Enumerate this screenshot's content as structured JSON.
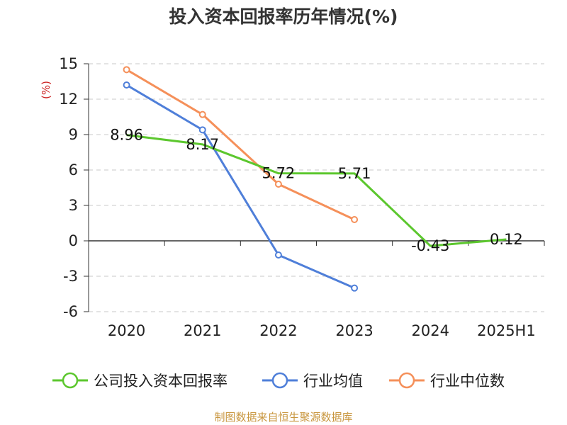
{
  "chart_data": {
    "type": "line",
    "title": "投入资本回报率历年情况(%)",
    "ylabel": "(%)",
    "categories": [
      "2020",
      "2021",
      "2022",
      "2023",
      "2024",
      "2025H1"
    ],
    "y_ticks": [
      15,
      12,
      9,
      6,
      3,
      0,
      -3,
      -6
    ],
    "ylim": [
      -6,
      15
    ],
    "grid": true,
    "legend_position": "bottom",
    "series": [
      {
        "name": "公司投入资本回报率",
        "color": "#5cc72e",
        "values": [
          8.96,
          8.17,
          5.72,
          5.71,
          -0.43,
          0.12
        ],
        "labels": [
          "8.96",
          "8.17",
          "5.72",
          "5.71",
          "-0.43",
          "0.12"
        ],
        "markers": false
      },
      {
        "name": "行业均值",
        "color": "#4f7fd9",
        "values": [
          13.2,
          9.4,
          -1.2,
          -4.0,
          null,
          null
        ],
        "markers": true
      },
      {
        "name": "行业中位数",
        "color": "#f5905a",
        "values": [
          14.5,
          10.7,
          4.8,
          1.8,
          null,
          null
        ],
        "markers": true
      }
    ],
    "source": "制图数据来自恒生聚源数据库"
  }
}
